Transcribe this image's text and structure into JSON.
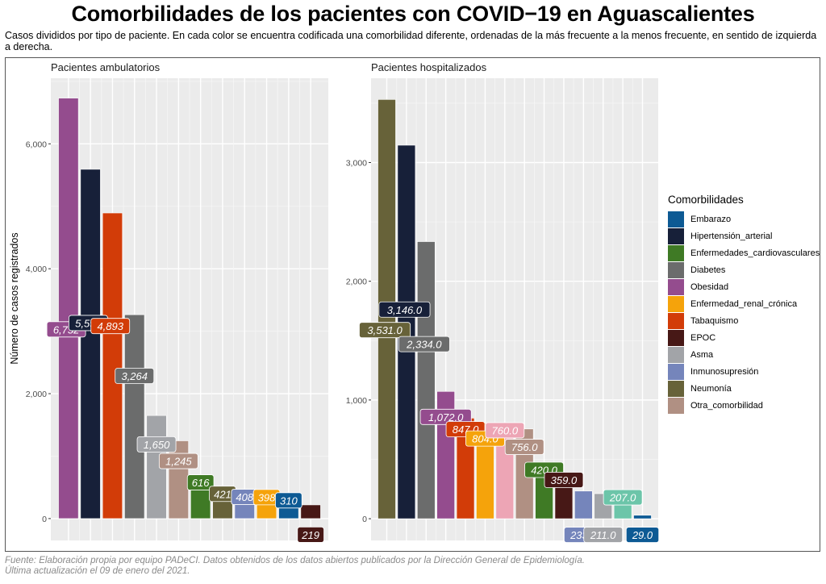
{
  "title": "Comorbilidades de los pacientes con COVID−19 en Aguascalientes",
  "subtitle": "Casos divididos por tipo de paciente. En cada color se encuentra codificada una comorbilidad diferente, ordenadas de la más frecuente a la menos frecuente, en sentido de izquierda a derecha.",
  "footer": {
    "line1": "Fuente: Elaboración propia por equipo PADeCI. Datos obtenidos de los datos abiertos publicados por la Dirección General de Epidemiología.",
    "line2": "Última actualización el 09 de enero del 2021."
  },
  "legend": {
    "title": "Comorbilidades",
    "items": [
      {
        "label": "Embarazo",
        "color": "#0d5a94"
      },
      {
        "label": "Hipertensión_arterial",
        "color": "#172039"
      },
      {
        "label": "Enfermedades_cardiovasculares",
        "color": "#3f7a25"
      },
      {
        "label": "Diabetes",
        "color": "#6b6c6c"
      },
      {
        "label": "Obesidad",
        "color": "#944c8e"
      },
      {
        "label": "Enfermedad_renal_crónica",
        "color": "#f5a30b"
      },
      {
        "label": "Tabaquismo",
        "color": "#d23c08"
      },
      {
        "label": "EPOC",
        "color": "#471816"
      },
      {
        "label": "Asma",
        "color": "#a2a4a8"
      },
      {
        "label": "Inmunosupresión",
        "color": "#7585bb"
      },
      {
        "label": "Neumonía",
        "color": "#676239"
      },
      {
        "label": "Otra_comorbilidad",
        "color": "#b09083"
      }
    ]
  },
  "chart_data": [
    {
      "type": "bar",
      "title": "Pacientes ambulatorios",
      "xlabel": "",
      "ylabel": "Número de casos registrados",
      "ylim": [
        -350,
        7050
      ],
      "yticks": [
        0,
        2000,
        4000,
        6000
      ],
      "ytick_labels": [
        "0",
        "2,000",
        "4,000",
        "6,000"
      ],
      "grid": true,
      "categories": [
        "Obesidad",
        "Hipertensión_arterial",
        "Tabaquismo",
        "Diabetes",
        "Asma",
        "Otra_comorbilidad",
        "Enfermedades_cardiovasculares",
        "Neumonía",
        "Inmunosupresión",
        "Enfermedad_renal_crónica",
        "Embarazo",
        "EPOC"
      ],
      "values": [
        6732,
        5592,
        4893,
        3264,
        1650,
        1245,
        616,
        421,
        408,
        398,
        310,
        219
      ],
      "labels": [
        "6,732",
        "5,592",
        "4,893",
        "3,264",
        "1,650",
        "1,245",
        "616",
        "421",
        "408",
        "398",
        "310",
        "219"
      ],
      "colors": [
        "#944c8e",
        "#172039",
        "#d23c08",
        "#6b6c6c",
        "#a2a4a8",
        "#b09083",
        "#3f7a25",
        "#676239",
        "#7585bb",
        "#f5a30b",
        "#0d5a94",
        "#471816"
      ]
    },
    {
      "type": "bar",
      "title": "Pacientes hospitalizados",
      "xlabel": "",
      "ylabel": "",
      "ylim": [
        -183,
        3710
      ],
      "yticks": [
        0,
        1000,
        2000,
        3000
      ],
      "ytick_labels": [
        "0",
        "1,000",
        "2,000",
        "3,000"
      ],
      "grid": true,
      "categories": [
        "Neumonía",
        "Hipertensión_arterial",
        "Diabetes",
        "Obesidad",
        "Tabaquismo",
        "Enfermedad_renal_crónica",
        "(rosa)",
        "Otra_comorbilidad",
        "Enfermedades_cardiovasculares",
        "EPOC",
        "Inmunosupresión",
        "Asma",
        "(verde agua)",
        "Embarazo"
      ],
      "values": [
        3531,
        3146,
        2334,
        1072,
        847,
        804,
        760,
        756,
        420,
        359,
        233,
        211,
        207,
        29
      ],
      "labels": [
        "3,531.0",
        "3,146.0",
        "2,334.0",
        "1,072.0",
        "847.0",
        "804.0",
        "760.0",
        "756.0",
        "420.0",
        "359.0",
        "233.0",
        "211.0",
        "207.0",
        "29.0"
      ],
      "colors": [
        "#676239",
        "#172039",
        "#6b6c6c",
        "#944c8e",
        "#d23c08",
        "#f5a30b",
        "#eda5b5",
        "#b09083",
        "#3f7a25",
        "#471816",
        "#7585bb",
        "#a2a4a8",
        "#6cc5a9",
        "#0d5a94"
      ]
    }
  ]
}
